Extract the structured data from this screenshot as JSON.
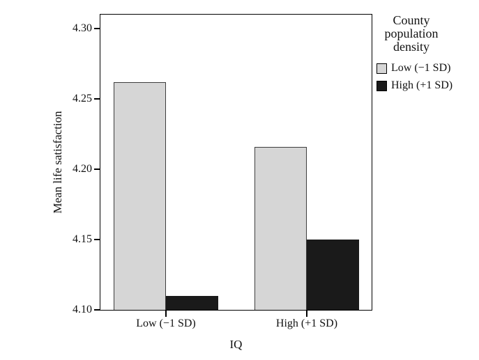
{
  "chart_data": {
    "type": "bar",
    "title": "",
    "categories": [
      "Low (−1 SD)",
      "High (+1 SD)"
    ],
    "series": [
      {
        "name": "Low (−1 SD)",
        "color": "#d6d6d6",
        "stroke": "#3d3d3d",
        "values": [
          4.262,
          4.216
        ]
      },
      {
        "name": "High (+1 SD)",
        "color": "#1a1a1a",
        "stroke": "#1a1a1a",
        "values": [
          4.11,
          4.15
        ]
      }
    ],
    "xlabel": "IQ",
    "ylabel": "Mean life satisfaction",
    "ylim": [
      4.1,
      4.31
    ],
    "yticks": [
      4.1,
      4.15,
      4.2,
      4.25,
      4.3
    ],
    "grid": false,
    "legend": {
      "title": "County population density",
      "position": "right"
    }
  }
}
